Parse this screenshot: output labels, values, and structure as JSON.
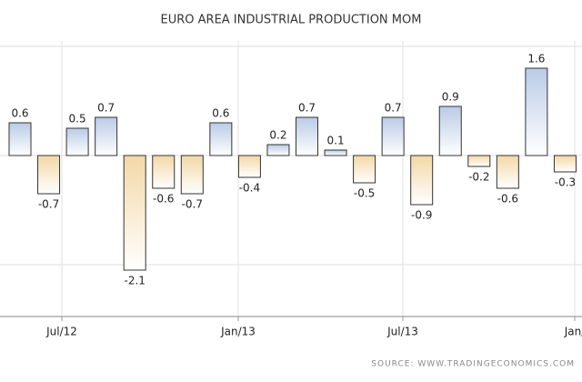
{
  "chart_data": {
    "type": "bar",
    "title": "EURO AREA INDUSTRIAL PRODUCTION MOM",
    "source": "SOURCE: WWW.TRADINGECONOMICS.COM",
    "values": [
      0.6,
      -0.7,
      0.5,
      0.7,
      -2.1,
      -0.6,
      -0.7,
      0.6,
      -0.4,
      0.2,
      0.7,
      0.1,
      -0.5,
      0.7,
      -0.9,
      0.9,
      -0.2,
      -0.6,
      1.6,
      -0.3
    ],
    "xtick_labels": [
      "Jul/12",
      "Jan/13",
      "Jul/13",
      "Jan/"
    ],
    "positive_color": "#b9cbe6",
    "negative_color": "#f3d8a6",
    "ylim": [
      -2.95,
      2.1
    ],
    "yticks": [
      -2,
      0,
      2
    ],
    "grid": true
  }
}
